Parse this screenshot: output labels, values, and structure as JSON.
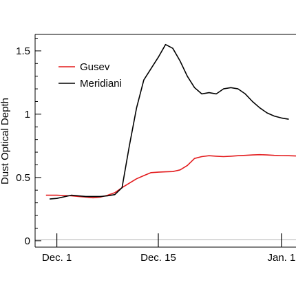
{
  "chart_data": {
    "type": "line",
    "title": "",
    "xlabel": "",
    "ylabel": "Dust Optical Depth",
    "ylim": [
      -0.05,
      1.63
    ],
    "xlim": [
      "Nov. 28",
      "Jan. 3"
    ],
    "grid": false,
    "legend_position": "upper-left",
    "x_ticks": [
      {
        "value": "Dec. 1",
        "label": "Dec. 1"
      },
      {
        "value": "Dec. 15",
        "label": "Dec. 15"
      },
      {
        "value": "Jan. 1",
        "label": "Jan. 1"
      }
    ],
    "y_ticks": [
      {
        "value": 0,
        "label": "0"
      },
      {
        "value": 0.5,
        "label": "0.5"
      },
      {
        "value": 1,
        "label": "1"
      },
      {
        "value": 1.5,
        "label": "1.5"
      }
    ],
    "series": [
      {
        "name": "Gusev",
        "color": "#e31a1c",
        "points": [
          {
            "x": "Nov. 29.5",
            "y": 0.36
          },
          {
            "x": "Dec. 1",
            "y": 0.36
          },
          {
            "x": "Dec. 3",
            "y": 0.355
          },
          {
            "x": "Dec. 4",
            "y": 0.35
          },
          {
            "x": "Dec. 5",
            "y": 0.345
          },
          {
            "x": "Dec. 6",
            "y": 0.34
          },
          {
            "x": "Dec. 7",
            "y": 0.345
          },
          {
            "x": "Dec. 8",
            "y": 0.36
          },
          {
            "x": "Dec. 9",
            "y": 0.38
          },
          {
            "x": "Dec. 10",
            "y": 0.42
          },
          {
            "x": "Dec. 11",
            "y": 0.455
          },
          {
            "x": "Dec. 12",
            "y": 0.49
          },
          {
            "x": "Dec. 13",
            "y": 0.515
          },
          {
            "x": "Dec. 14",
            "y": 0.538
          },
          {
            "x": "Dec. 15",
            "y": 0.542
          },
          {
            "x": "Dec. 16",
            "y": 0.545
          },
          {
            "x": "Dec. 17",
            "y": 0.547
          },
          {
            "x": "Dec. 18",
            "y": 0.56
          },
          {
            "x": "Dec. 19",
            "y": 0.595
          },
          {
            "x": "Dec. 20",
            "y": 0.65
          },
          {
            "x": "Dec. 21",
            "y": 0.665
          },
          {
            "x": "Dec. 22",
            "y": 0.672
          },
          {
            "x": "Dec. 23",
            "y": 0.668
          },
          {
            "x": "Dec. 24",
            "y": 0.665
          },
          {
            "x": "Dec. 25",
            "y": 0.668
          },
          {
            "x": "Dec. 26",
            "y": 0.672
          },
          {
            "x": "Dec. 27",
            "y": 0.675
          },
          {
            "x": "Dec. 28",
            "y": 0.678
          },
          {
            "x": "Dec. 29",
            "y": 0.68
          },
          {
            "x": "Dec. 30",
            "y": 0.678
          },
          {
            "x": "Dec. 31",
            "y": 0.675
          },
          {
            "x": "Jan. 1",
            "y": 0.673
          },
          {
            "x": "Jan. 2",
            "y": 0.672
          },
          {
            "x": "Jan. 3",
            "y": 0.67
          }
        ]
      },
      {
        "name": "Meridiani",
        "color": "#000000",
        "points": [
          {
            "x": "Nov. 30",
            "y": 0.33
          },
          {
            "x": "Dec. 1",
            "y": 0.335
          },
          {
            "x": "Dec. 3",
            "y": 0.36
          },
          {
            "x": "Dec. 4",
            "y": 0.355
          },
          {
            "x": "Dec. 5",
            "y": 0.35
          },
          {
            "x": "Dec. 6",
            "y": 0.35
          },
          {
            "x": "Dec. 7",
            "y": 0.35
          },
          {
            "x": "Dec. 8",
            "y": 0.355
          },
          {
            "x": "Dec. 9",
            "y": 0.365
          },
          {
            "x": "Dec. 10",
            "y": 0.42
          },
          {
            "x": "Dec. 11",
            "y": 0.75
          },
          {
            "x": "Dec. 12",
            "y": 1.05
          },
          {
            "x": "Dec. 13",
            "y": 1.27
          },
          {
            "x": "Dec. 14",
            "y": 1.36
          },
          {
            "x": "Dec. 15",
            "y": 1.45
          },
          {
            "x": "Dec. 16",
            "y": 1.55
          },
          {
            "x": "Dec. 17",
            "y": 1.52
          },
          {
            "x": "Dec. 18",
            "y": 1.42
          },
          {
            "x": "Dec. 19",
            "y": 1.3
          },
          {
            "x": "Dec. 20",
            "y": 1.21
          },
          {
            "x": "Dec. 21",
            "y": 1.16
          },
          {
            "x": "Dec. 22",
            "y": 1.17
          },
          {
            "x": "Dec. 23",
            "y": 1.16
          },
          {
            "x": "Dec. 24",
            "y": 1.2
          },
          {
            "x": "Dec. 25",
            "y": 1.21
          },
          {
            "x": "Dec. 26",
            "y": 1.2
          },
          {
            "x": "Dec. 27",
            "y": 1.16
          },
          {
            "x": "Dec. 28",
            "y": 1.1
          },
          {
            "x": "Dec. 29",
            "y": 1.05
          },
          {
            "x": "Dec. 30",
            "y": 1.01
          },
          {
            "x": "Dec. 31",
            "y": 0.985
          },
          {
            "x": "Jan. 1",
            "y": 0.97
          },
          {
            "x": "Jan. 2",
            "y": 0.96
          }
        ]
      }
    ]
  }
}
